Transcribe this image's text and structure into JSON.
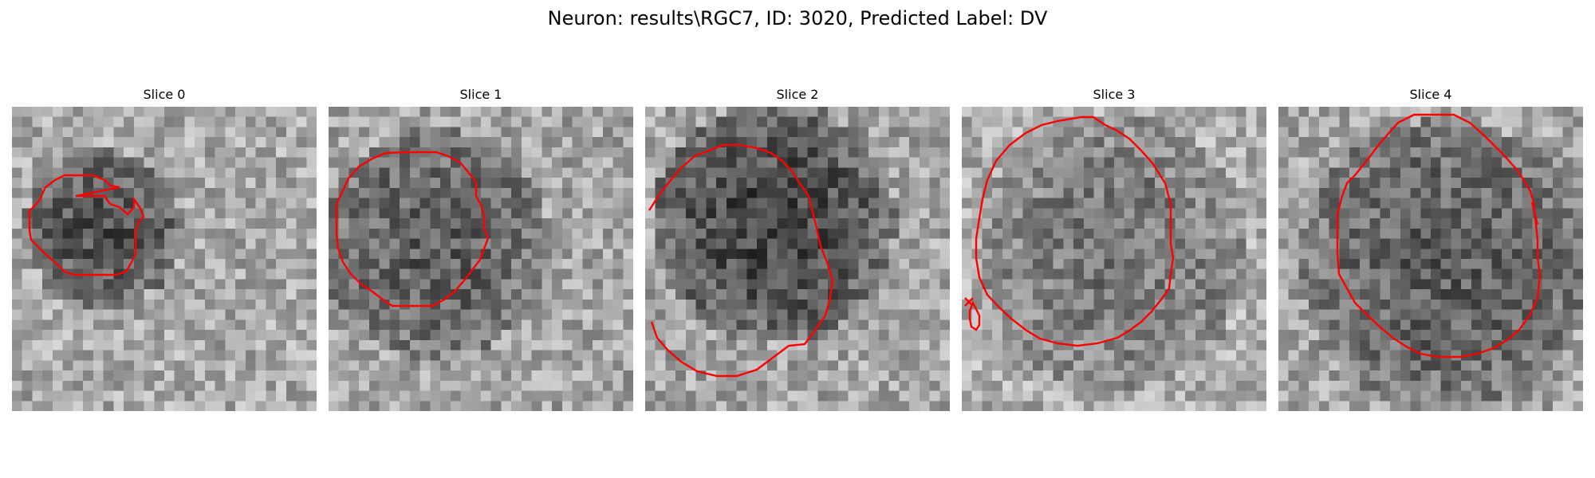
{
  "figure": {
    "title": "Neuron: results\\RGC7, ID: 3020, Predicted Label: DV"
  },
  "panels": [
    {
      "title": "Slice 0"
    },
    {
      "title": "Slice 1"
    },
    {
      "title": "Slice 2"
    },
    {
      "title": "Slice 3"
    },
    {
      "title": "Slice 4"
    }
  ],
  "colors": {
    "contour": "#ff0000",
    "background": "#ffffff",
    "image_colormap": "grayscale"
  }
}
